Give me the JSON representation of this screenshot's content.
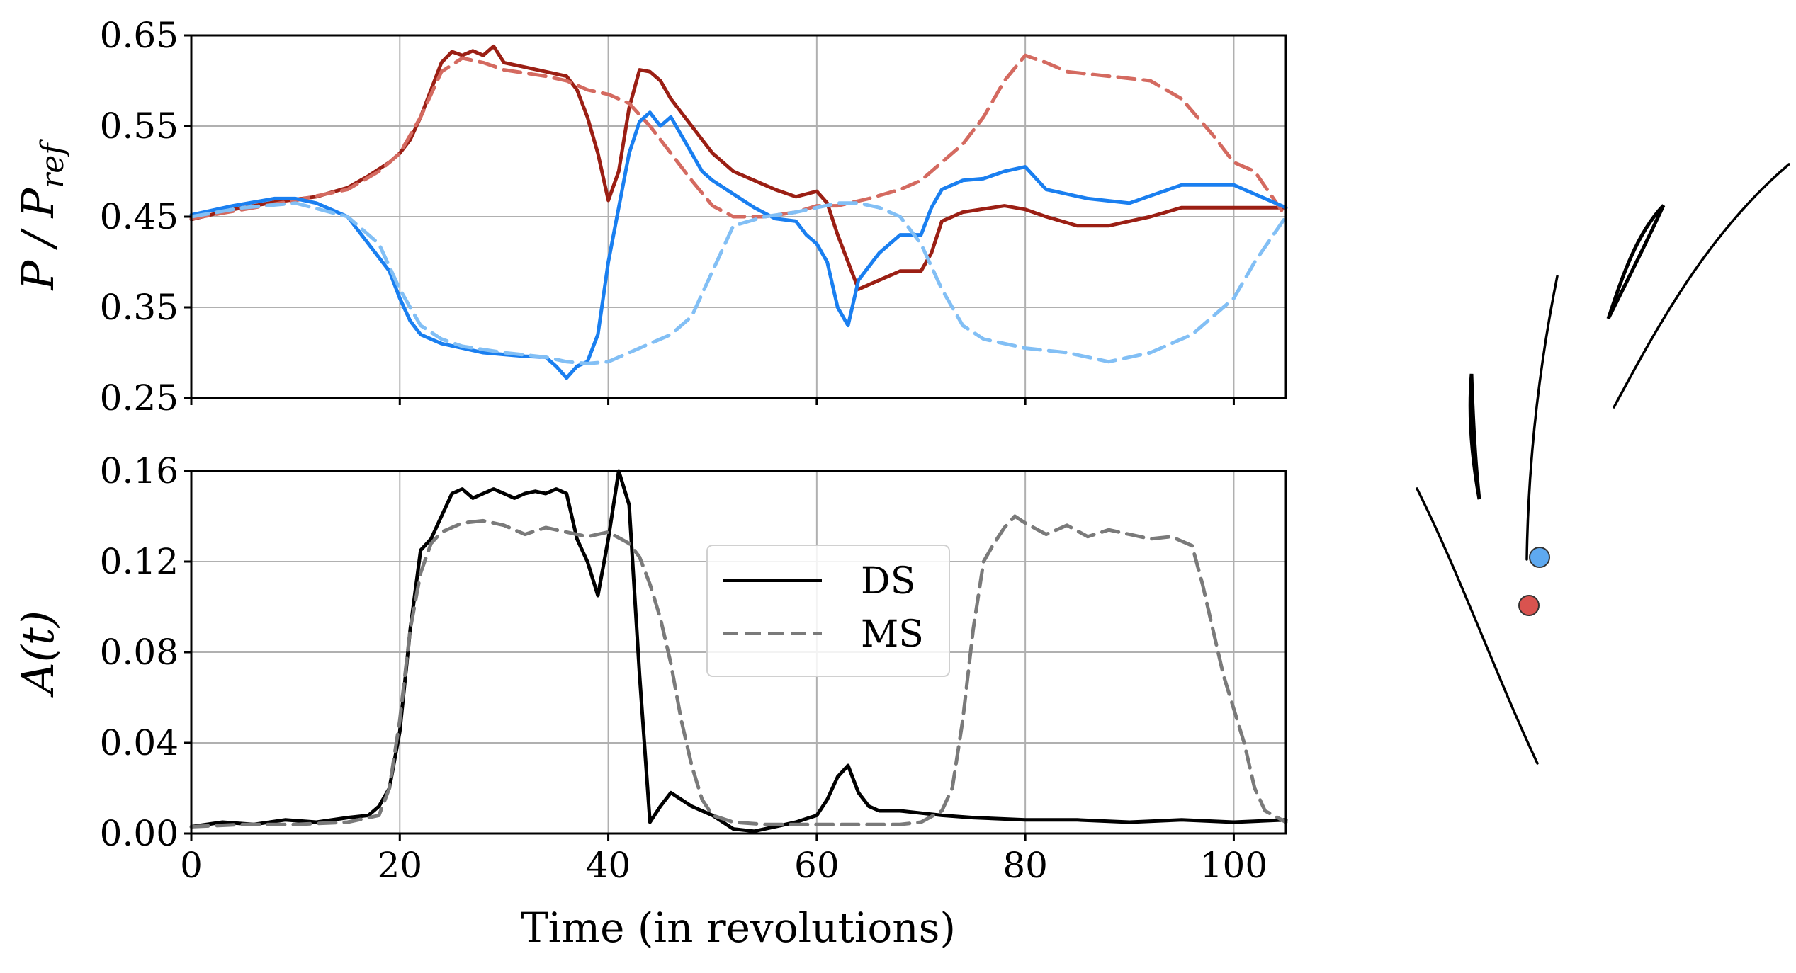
{
  "colors": {
    "ds_red": "#9b1f14",
    "ms_red": "#d46a60",
    "ds_blue": "#1a7ff0",
    "ms_blue": "#82bff5",
    "ds_black": "#000000",
    "ms_gray": "#7a7a7a",
    "grid": "#b0b0b0",
    "marker_red": "#d9534f",
    "marker_blue": "#5ea9f0"
  },
  "chart_data": [
    {
      "type": "line",
      "ylabel": "P/P_ref",
      "ylabel_main": "P / P",
      "ylabel_sub": "ref",
      "xlim": [
        0,
        105
      ],
      "ylim": [
        0.25,
        0.65
      ],
      "xticks": [
        0,
        20,
        40,
        60,
        80,
        100
      ],
      "yticks": [
        "0.25",
        "0.35",
        "0.45",
        "0.55",
        "0.65"
      ],
      "grid": true,
      "series": [
        {
          "name": "DS red",
          "style": "solid",
          "color_key": "ds_red",
          "x": [
            0,
            4,
            8,
            12,
            15,
            17,
            19,
            20,
            21,
            22,
            23,
            24,
            25,
            26,
            27,
            28,
            29,
            30,
            32,
            34,
            36,
            37,
            38,
            39,
            40,
            41,
            42,
            43,
            44,
            45,
            46,
            48,
            50,
            52,
            54,
            56,
            58,
            60,
            61,
            62,
            63,
            64,
            65,
            66,
            68,
            70,
            71,
            72,
            74,
            78,
            80,
            82,
            85,
            88,
            92,
            95,
            100,
            105
          ],
          "y": [
            0.447,
            0.458,
            0.466,
            0.472,
            0.482,
            0.495,
            0.51,
            0.52,
            0.535,
            0.56,
            0.59,
            0.62,
            0.632,
            0.628,
            0.633,
            0.628,
            0.638,
            0.62,
            0.615,
            0.61,
            0.605,
            0.59,
            0.56,
            0.52,
            0.468,
            0.5,
            0.57,
            0.612,
            0.61,
            0.6,
            0.58,
            0.55,
            0.52,
            0.5,
            0.49,
            0.48,
            0.472,
            0.478,
            0.465,
            0.43,
            0.4,
            0.37,
            0.375,
            0.38,
            0.39,
            0.39,
            0.41,
            0.445,
            0.455,
            0.462,
            0.458,
            0.45,
            0.44,
            0.44,
            0.45,
            0.46,
            0.46,
            0.46
          ]
        },
        {
          "name": "MS red",
          "style": "dashed",
          "color_key": "ms_red",
          "x": [
            0,
            5,
            10,
            15,
            18,
            20,
            22,
            24,
            26,
            28,
            30,
            34,
            36,
            38,
            40,
            42,
            44,
            46,
            48,
            50,
            52,
            55,
            58,
            60,
            62,
            65,
            68,
            70,
            72,
            74,
            76,
            78,
            80,
            82,
            84,
            88,
            92,
            95,
            98,
            100,
            102,
            105
          ],
          "y": [
            0.448,
            0.458,
            0.468,
            0.48,
            0.5,
            0.52,
            0.56,
            0.61,
            0.625,
            0.62,
            0.612,
            0.605,
            0.6,
            0.59,
            0.585,
            0.575,
            0.55,
            0.52,
            0.49,
            0.462,
            0.45,
            0.45,
            0.455,
            0.462,
            0.462,
            0.47,
            0.48,
            0.49,
            0.51,
            0.53,
            0.56,
            0.6,
            0.628,
            0.62,
            0.61,
            0.605,
            0.6,
            0.58,
            0.54,
            0.51,
            0.5,
            0.45
          ]
        },
        {
          "name": "DS blue",
          "style": "solid",
          "color_key": "ds_blue",
          "x": [
            0,
            4,
            8,
            10,
            12,
            15,
            17,
            19,
            20,
            21,
            22,
            23,
            24,
            26,
            28,
            30,
            32,
            34,
            35,
            36,
            37,
            38,
            39,
            40,
            41,
            42,
            43,
            44,
            45,
            46,
            47,
            48,
            49,
            50,
            52,
            54,
            56,
            58,
            59,
            60,
            61,
            62,
            63,
            64,
            66,
            68,
            70,
            71,
            72,
            74,
            76,
            78,
            80,
            82,
            86,
            90,
            95,
            100,
            105
          ],
          "y": [
            0.452,
            0.462,
            0.47,
            0.47,
            0.465,
            0.45,
            0.42,
            0.39,
            0.36,
            0.335,
            0.32,
            0.315,
            0.31,
            0.305,
            0.3,
            0.298,
            0.296,
            0.295,
            0.285,
            0.272,
            0.285,
            0.29,
            0.32,
            0.4,
            0.46,
            0.52,
            0.555,
            0.565,
            0.55,
            0.56,
            0.54,
            0.52,
            0.5,
            0.49,
            0.475,
            0.46,
            0.448,
            0.445,
            0.43,
            0.42,
            0.4,
            0.35,
            0.33,
            0.38,
            0.41,
            0.43,
            0.43,
            0.46,
            0.48,
            0.49,
            0.492,
            0.5,
            0.505,
            0.48,
            0.47,
            0.465,
            0.485,
            0.485,
            0.46
          ]
        },
        {
          "name": "MS blue",
          "style": "dashed",
          "color_key": "ms_blue",
          "x": [
            0,
            5,
            10,
            15,
            18,
            20,
            22,
            24,
            26,
            30,
            34,
            36,
            38,
            40,
            42,
            44,
            46,
            48,
            50,
            52,
            55,
            58,
            60,
            62,
            64,
            66,
            68,
            70,
            72,
            74,
            76,
            78,
            80,
            84,
            88,
            92,
            96,
            100,
            102,
            105
          ],
          "y": [
            0.45,
            0.46,
            0.465,
            0.45,
            0.42,
            0.37,
            0.33,
            0.315,
            0.307,
            0.3,
            0.295,
            0.29,
            0.288,
            0.29,
            0.3,
            0.31,
            0.32,
            0.34,
            0.39,
            0.44,
            0.45,
            0.455,
            0.46,
            0.465,
            0.465,
            0.46,
            0.45,
            0.42,
            0.37,
            0.33,
            0.315,
            0.31,
            0.305,
            0.3,
            0.29,
            0.3,
            0.32,
            0.36,
            0.4,
            0.45
          ]
        }
      ]
    },
    {
      "type": "line",
      "ylabel": "A(t)",
      "xlabel": "Time (in revolutions)",
      "xlim": [
        0,
        105
      ],
      "ylim": [
        0,
        0.16
      ],
      "xticks": [
        "0",
        "20",
        "40",
        "60",
        "80",
        "100"
      ],
      "yticks": [
        "0.00",
        "0.04",
        "0.08",
        "0.12",
        "0.16"
      ],
      "grid": true,
      "legend": {
        "position": "center",
        "entries": [
          {
            "label": "DS",
            "style": "solid"
          },
          {
            "label": "MS",
            "style": "dashed"
          }
        ]
      },
      "series": [
        {
          "name": "DS",
          "style": "solid",
          "color_key": "ds_black",
          "x": [
            0,
            3,
            6,
            9,
            12,
            15,
            17,
            18,
            19,
            20,
            21,
            22,
            23,
            24,
            25,
            26,
            27,
            28,
            29,
            30,
            31,
            32,
            33,
            34,
            35,
            36,
            37,
            38,
            39,
            40,
            41,
            42,
            43,
            44,
            45,
            46,
            48,
            50,
            52,
            54,
            56,
            58,
            60,
            61,
            62,
            63,
            64,
            65,
            66,
            68,
            70,
            72,
            75,
            80,
            85,
            90,
            95,
            100,
            105
          ],
          "y": [
            0.003,
            0.005,
            0.004,
            0.006,
            0.005,
            0.007,
            0.008,
            0.012,
            0.02,
            0.045,
            0.09,
            0.125,
            0.13,
            0.14,
            0.15,
            0.152,
            0.148,
            0.15,
            0.152,
            0.15,
            0.148,
            0.15,
            0.151,
            0.15,
            0.152,
            0.15,
            0.13,
            0.12,
            0.105,
            0.13,
            0.16,
            0.145,
            0.07,
            0.005,
            0.012,
            0.018,
            0.012,
            0.008,
            0.002,
            0.001,
            0.003,
            0.005,
            0.008,
            0.015,
            0.025,
            0.03,
            0.018,
            0.012,
            0.01,
            0.01,
            0.009,
            0.008,
            0.007,
            0.006,
            0.006,
            0.005,
            0.006,
            0.005,
            0.006
          ]
        },
        {
          "name": "MS",
          "style": "dashed",
          "color_key": "ms_gray",
          "x": [
            0,
            5,
            10,
            15,
            18,
            19,
            20,
            21,
            22,
            23,
            24,
            26,
            28,
            30,
            32,
            34,
            36,
            38,
            40,
            42,
            43,
            44,
            45,
            46,
            47,
            48,
            49,
            50,
            52,
            55,
            58,
            60,
            62,
            65,
            68,
            70,
            72,
            73,
            74,
            75,
            76,
            77,
            78,
            79,
            80,
            82,
            84,
            86,
            88,
            90,
            92,
            94,
            96,
            97,
            98,
            99,
            100,
            101,
            102,
            103,
            105
          ],
          "y": [
            0.003,
            0.004,
            0.004,
            0.005,
            0.008,
            0.02,
            0.05,
            0.09,
            0.115,
            0.128,
            0.133,
            0.137,
            0.138,
            0.136,
            0.132,
            0.135,
            0.133,
            0.131,
            0.133,
            0.128,
            0.122,
            0.11,
            0.095,
            0.075,
            0.05,
            0.03,
            0.015,
            0.008,
            0.005,
            0.004,
            0.004,
            0.004,
            0.004,
            0.004,
            0.004,
            0.005,
            0.01,
            0.02,
            0.05,
            0.09,
            0.12,
            0.128,
            0.135,
            0.14,
            0.137,
            0.132,
            0.136,
            0.131,
            0.134,
            0.132,
            0.13,
            0.131,
            0.127,
            0.11,
            0.09,
            0.07,
            0.055,
            0.04,
            0.02,
            0.01,
            0.005
          ]
        }
      ]
    }
  ]
}
